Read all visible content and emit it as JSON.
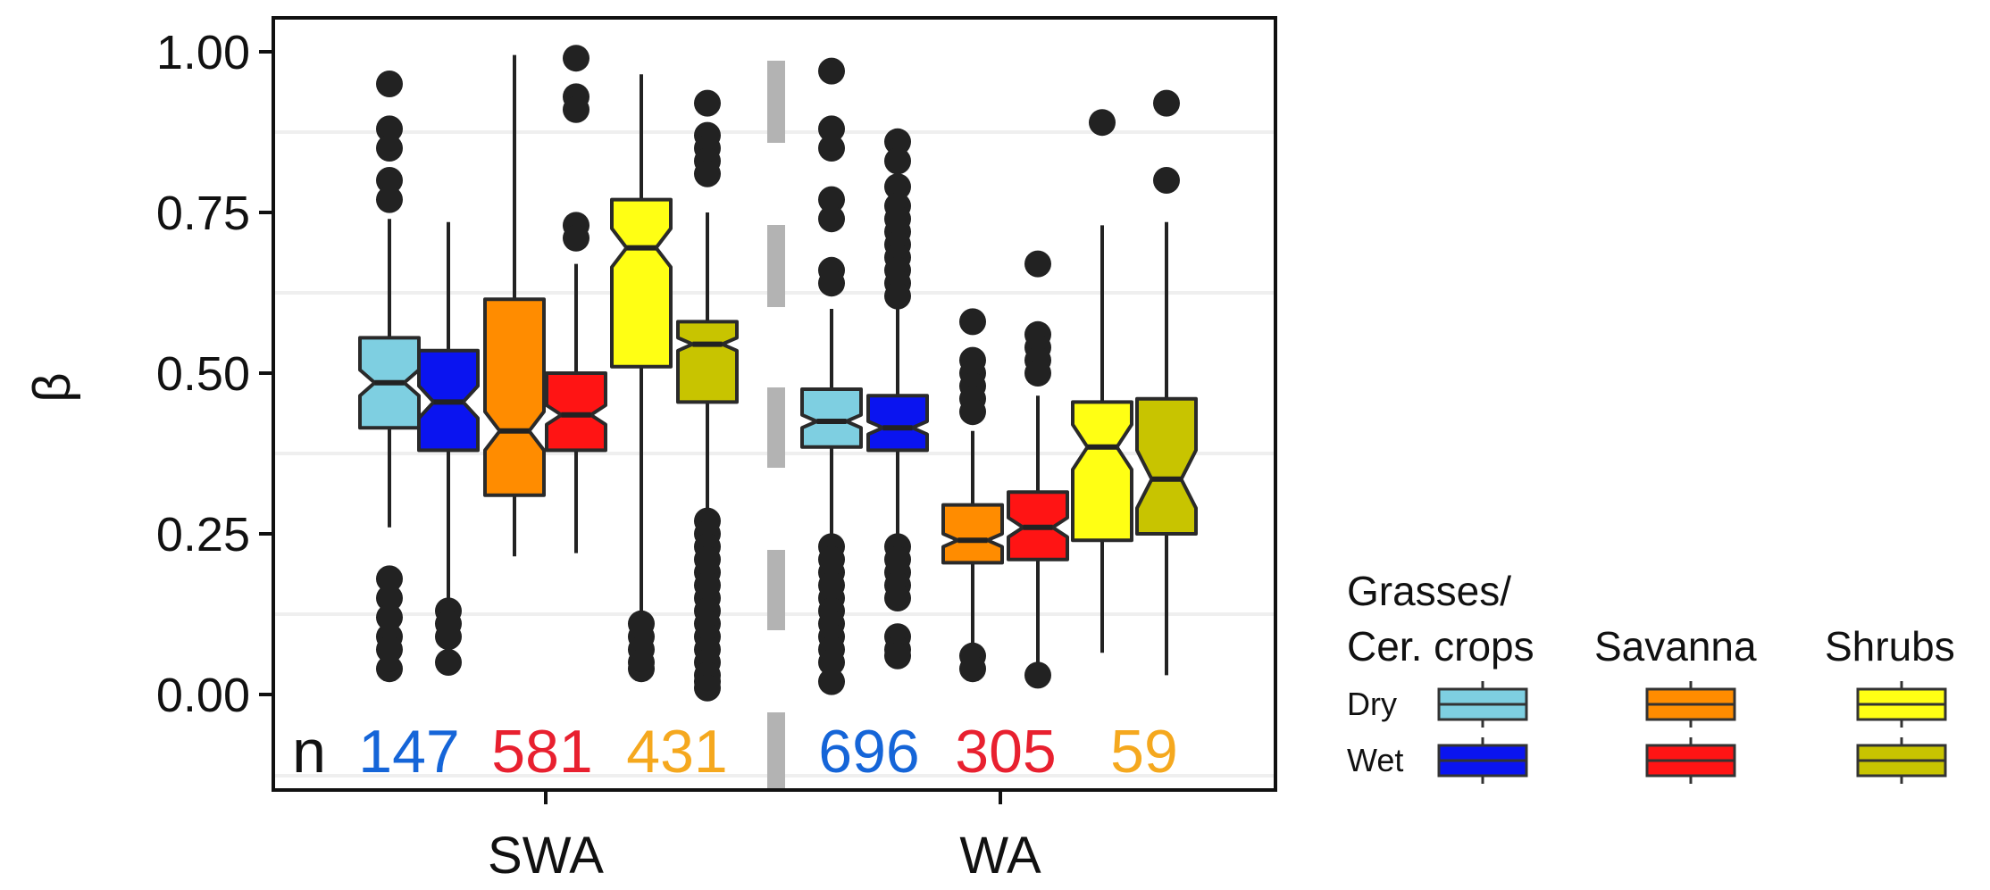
{
  "chart_data": {
    "type": "boxplot",
    "ylabel": "β",
    "ylim": [
      -0.14,
      1.05
    ],
    "yticks": [
      0,
      0.25,
      0.5,
      0.75,
      1
    ],
    "ytick_labels": [
      "0.00",
      "0.25",
      "0.50",
      "0.75",
      "1.00"
    ],
    "grid": "horizontal minor lines",
    "regions": [
      "SWA",
      "WA"
    ],
    "n_prefix": "n",
    "counts": [
      {
        "region": "SWA",
        "group": "Grasses/Cer. crops",
        "value": "147",
        "color": "#1565d8"
      },
      {
        "region": "SWA",
        "group": "Savanna",
        "value": "581",
        "color": "#e8202f"
      },
      {
        "region": "SWA",
        "group": "Shrubs",
        "value": "431",
        "color": "#f5a81e"
      },
      {
        "region": "WA",
        "group": "Grasses/Cer. crops",
        "value": "696",
        "color": "#1565d8"
      },
      {
        "region": "WA",
        "group": "Savanna",
        "value": "305",
        "color": "#e8202f"
      },
      {
        "region": "WA",
        "group": "Shrubs",
        "value": "59",
        "color": "#f5a81e"
      }
    ],
    "boxes": [
      {
        "region": "SWA",
        "group": "Grasses/Cer. crops",
        "condition": "Dry",
        "color": "#7ecfe1",
        "q1": 0.415,
        "median": 0.485,
        "q3": 0.555,
        "notch_lo": 0.465,
        "notch_hi": 0.505,
        "whisker_lo": 0.26,
        "whisker_hi": 0.74,
        "outliers": [
          0.95,
          0.88,
          0.85,
          0.8,
          0.77,
          0.18,
          0.15,
          0.12,
          0.09,
          0.07,
          0.04
        ]
      },
      {
        "region": "SWA",
        "group": "Grasses/Cer. crops",
        "condition": "Wet",
        "color": "#0a14f0",
        "q1": 0.38,
        "median": 0.455,
        "q3": 0.535,
        "notch_lo": 0.43,
        "notch_hi": 0.48,
        "whisker_lo": 0.15,
        "whisker_hi": 0.735,
        "outliers": [
          0.13,
          0.11,
          0.09,
          0.05
        ]
      },
      {
        "region": "SWA",
        "group": "Savanna",
        "condition": "Dry",
        "color": "#ff8c00",
        "q1": 0.31,
        "median": 0.41,
        "q3": 0.615,
        "notch_lo": 0.38,
        "notch_hi": 0.44,
        "whisker_lo": 0.215,
        "whisker_hi": 0.995,
        "outliers": []
      },
      {
        "region": "SWA",
        "group": "Savanna",
        "condition": "Wet",
        "color": "#ff1414",
        "q1": 0.38,
        "median": 0.435,
        "q3": 0.5,
        "notch_lo": 0.42,
        "notch_hi": 0.45,
        "whisker_lo": 0.22,
        "whisker_hi": 0.67,
        "outliers": [
          0.99,
          0.93,
          0.91,
          0.73,
          0.71
        ]
      },
      {
        "region": "SWA",
        "group": "Shrubs",
        "condition": "Dry",
        "color": "#ffff14",
        "q1": 0.51,
        "median": 0.695,
        "q3": 0.77,
        "notch_lo": 0.665,
        "notch_hi": 0.725,
        "whisker_lo": 0.12,
        "whisker_hi": 0.965,
        "outliers": [
          0.11,
          0.09,
          0.07,
          0.05,
          0.04
        ]
      },
      {
        "region": "SWA",
        "group": "Shrubs",
        "condition": "Wet",
        "color": "#c8c400",
        "q1": 0.455,
        "median": 0.545,
        "q3": 0.58,
        "notch_lo": 0.535,
        "notch_hi": 0.555,
        "whisker_lo": 0.28,
        "whisker_hi": 0.75,
        "outliers": [
          0.92,
          0.87,
          0.85,
          0.83,
          0.81,
          0.27,
          0.25,
          0.23,
          0.21,
          0.19,
          0.17,
          0.15,
          0.13,
          0.11,
          0.09,
          0.07,
          0.05,
          0.03,
          0.02,
          0.01
        ]
      },
      {
        "region": "WA",
        "group": "Grasses/Cer. crops",
        "condition": "Dry",
        "color": "#7ecfe1",
        "q1": 0.385,
        "median": 0.425,
        "q3": 0.475,
        "notch_lo": 0.415,
        "notch_hi": 0.435,
        "whisker_lo": 0.245,
        "whisker_hi": 0.6,
        "outliers": [
          0.97,
          0.88,
          0.85,
          0.77,
          0.74,
          0.66,
          0.64,
          0.23,
          0.21,
          0.19,
          0.17,
          0.15,
          0.13,
          0.11,
          0.09,
          0.07,
          0.05,
          0.02
        ]
      },
      {
        "region": "WA",
        "group": "Grasses/Cer. crops",
        "condition": "Wet",
        "color": "#0a14f0",
        "q1": 0.38,
        "median": 0.415,
        "q3": 0.465,
        "notch_lo": 0.405,
        "notch_hi": 0.425,
        "whisker_lo": 0.24,
        "whisker_hi": 0.61,
        "outliers": [
          0.86,
          0.83,
          0.79,
          0.76,
          0.74,
          0.72,
          0.7,
          0.68,
          0.66,
          0.64,
          0.62,
          0.23,
          0.21,
          0.19,
          0.17,
          0.15,
          0.09,
          0.07,
          0.06
        ]
      },
      {
        "region": "WA",
        "group": "Savanna",
        "condition": "Dry",
        "color": "#ff8c00",
        "q1": 0.205,
        "median": 0.24,
        "q3": 0.295,
        "notch_lo": 0.23,
        "notch_hi": 0.25,
        "whisker_lo": 0.07,
        "whisker_hi": 0.41,
        "outliers": [
          0.58,
          0.52,
          0.5,
          0.48,
          0.46,
          0.44,
          0.06,
          0.04
        ]
      },
      {
        "region": "WA",
        "group": "Savanna",
        "condition": "Wet",
        "color": "#ff1414",
        "q1": 0.21,
        "median": 0.26,
        "q3": 0.315,
        "notch_lo": 0.245,
        "notch_hi": 0.275,
        "whisker_lo": 0.05,
        "whisker_hi": 0.465,
        "outliers": [
          0.67,
          0.56,
          0.54,
          0.52,
          0.5,
          0.03
        ]
      },
      {
        "region": "WA",
        "group": "Shrubs",
        "condition": "Dry",
        "color": "#ffff14",
        "q1": 0.24,
        "median": 0.385,
        "q3": 0.455,
        "notch_lo": 0.35,
        "notch_hi": 0.42,
        "whisker_lo": 0.065,
        "whisker_hi": 0.73,
        "outliers": [
          0.89
        ]
      },
      {
        "region": "WA",
        "group": "Shrubs",
        "condition": "Wet",
        "color": "#c8c400",
        "q1": 0.25,
        "median": 0.335,
        "q3": 0.46,
        "notch_lo": 0.29,
        "notch_hi": 0.38,
        "whisker_lo": 0.03,
        "whisker_hi": 0.735,
        "outliers": [
          0.92,
          0.8
        ]
      }
    ],
    "divider": {
      "style": "dashed",
      "color": "#b3b3b3"
    },
    "legend": {
      "placement": "right, bottom",
      "groups": [
        {
          "label": "Grasses/\nCer. crops",
          "dry_color": "#7ecfe1",
          "wet_color": "#0a14f0"
        },
        {
          "label": "Savanna",
          "dry_color": "#ff8c00",
          "wet_color": "#ff1414"
        },
        {
          "label": "Shrubs",
          "dry_color": "#ffff14",
          "wet_color": "#c8c400"
        }
      ],
      "rows": [
        "Dry",
        "Wet"
      ]
    }
  }
}
